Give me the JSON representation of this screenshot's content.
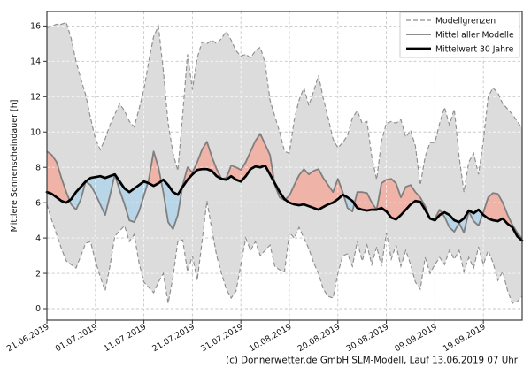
{
  "footer": {
    "text": "(c) Donnerwetter.de GmbH SLM-Modell, Lauf 13.06.2019 07 Uhr"
  },
  "colors": {
    "background": "#ffffff",
    "band_fill": "#dcdcdc",
    "band_edge": "#8f8f8f",
    "model_mean_line": "#7f7f7f",
    "climate_mean_line": "#000000",
    "above_normal_fill": "#efb3a8",
    "below_normal_fill": "#b9d6e8",
    "grid": "#c6c6c6",
    "text": "#111111"
  },
  "chart_data": {
    "type": "line",
    "title": "",
    "xlabel": "",
    "ylabel": "Mittlere Sonnenscheindauer [h]",
    "ylim": [
      -0.65,
      16.85
    ],
    "yticks": [
      0,
      2,
      4,
      6,
      8,
      10,
      12,
      14,
      16
    ],
    "grid": true,
    "legend_position": "upper right",
    "legend": [
      "Modellgrenzen",
      "Mittel aller Modelle",
      "Mittelwert 30 Jahre"
    ],
    "x_unit": "days since first date, daily values",
    "x_days_total": 98,
    "x_tick_days": [
      0,
      10,
      20,
      30,
      40,
      50,
      60,
      70,
      80,
      90
    ],
    "x_tick_labels": [
      "21.06.2019",
      "01.07.2019",
      "11.07.2019",
      "21.07.2019",
      "31.07.2019",
      "10.08.2019",
      "20.08.2019",
      "30.08.2019",
      "09.09.2019",
      "19.09.2019"
    ],
    "series": [
      {
        "name": "Modellgrenzen (oben)",
        "style": "dashed-bound",
        "values": [
          15.9,
          16.0,
          16.1,
          16.1,
          16.2,
          15.3,
          14.0,
          13.0,
          12.1,
          10.8,
          9.6,
          9.0,
          9.6,
          10.4,
          11.0,
          11.6,
          11.2,
          10.6,
          10.3,
          11.3,
          12.4,
          14.0,
          15.4,
          16.0,
          13.5,
          10.5,
          8.8,
          7.8,
          11.0,
          14.4,
          12.4,
          14.2,
          15.1,
          15.0,
          15.2,
          15.0,
          15.3,
          15.7,
          15.2,
          14.6,
          14.3,
          14.4,
          14.2,
          14.6,
          14.8,
          13.9,
          11.8,
          10.9,
          10.0,
          8.9,
          8.8,
          10.7,
          11.8,
          12.5,
          11.5,
          12.3,
          13.2,
          11.9,
          10.8,
          9.6,
          9.1,
          9.4,
          9.8,
          10.8,
          11.2,
          10.5,
          10.6,
          8.6,
          7.3,
          9.5,
          10.5,
          10.6,
          10.5,
          10.7,
          9.7,
          10.1,
          9.2,
          7.0,
          8.6,
          9.4,
          9.4,
          10.5,
          11.4,
          10.4,
          11.3,
          8.6,
          6.6,
          8.3,
          8.8,
          7.6,
          9.5,
          12.0,
          12.5,
          12.2,
          11.6,
          11.3,
          11.0,
          10.6,
          10.2
        ]
      },
      {
        "name": "Modellgrenzen (unten)",
        "style": "dashed-bound",
        "values": [
          5.9,
          5.0,
          4.2,
          3.4,
          2.7,
          2.5,
          2.3,
          3.0,
          3.7,
          3.8,
          2.7,
          1.8,
          1.0,
          2.4,
          4.1,
          4.4,
          4.7,
          3.8,
          4.2,
          2.6,
          1.5,
          1.2,
          0.9,
          1.5,
          2.0,
          0.3,
          1.8,
          3.8,
          3.9,
          2.1,
          3.0,
          1.6,
          3.8,
          6.1,
          4.5,
          3.0,
          2.0,
          1.1,
          0.6,
          1.0,
          2.5,
          4.0,
          3.3,
          3.8,
          3.0,
          3.3,
          3.6,
          2.4,
          2.2,
          2.1,
          4.3,
          4.0,
          4.6,
          4.0,
          3.4,
          2.6,
          2.0,
          1.1,
          0.7,
          0.6,
          2.0,
          3.0,
          3.1,
          2.4,
          3.8,
          2.7,
          3.6,
          2.5,
          3.5,
          2.4,
          4.3,
          2.8,
          3.6,
          2.4,
          3.3,
          2.5,
          1.5,
          1.1,
          2.9,
          2.0,
          2.5,
          2.9,
          2.5,
          3.3,
          2.8,
          3.3,
          2.1,
          2.9,
          2.3,
          3.5,
          2.5,
          3.3,
          2.6,
          1.6,
          2.1,
          1.0,
          0.3,
          0.4,
          0.7
        ]
      },
      {
        "name": "Mittel aller Modelle",
        "style": "solid-gray",
        "values": [
          8.9,
          8.7,
          8.3,
          7.4,
          6.6,
          5.9,
          5.6,
          6.2,
          7.2,
          7.0,
          6.5,
          5.9,
          5.3,
          6.4,
          7.6,
          6.7,
          5.9,
          5.0,
          4.9,
          5.5,
          6.4,
          7.3,
          8.9,
          8.0,
          6.6,
          4.9,
          4.5,
          5.3,
          7.0,
          8.0,
          7.7,
          8.3,
          9.0,
          9.45,
          8.6,
          7.9,
          7.35,
          7.4,
          8.1,
          8.0,
          7.85,
          8.3,
          8.9,
          9.5,
          9.9,
          9.3,
          8.7,
          7.0,
          6.3,
          6.15,
          6.4,
          7.0,
          7.55,
          7.9,
          7.6,
          7.8,
          7.9,
          7.4,
          7.0,
          6.6,
          7.35,
          6.6,
          5.7,
          5.5,
          6.6,
          6.6,
          6.55,
          6.0,
          5.6,
          7.1,
          7.3,
          7.35,
          7.1,
          6.3,
          6.9,
          7.0,
          6.6,
          6.3,
          5.8,
          5.1,
          5.1,
          5.6,
          5.2,
          4.6,
          4.35,
          4.85,
          4.3,
          5.5,
          4.95,
          4.7,
          5.45,
          6.3,
          6.55,
          6.5,
          6.0,
          5.3,
          4.75,
          4.3,
          3.95
        ]
      },
      {
        "name": "Mittelwert 30 Jahre",
        "style": "solid-black-bold",
        "values": [
          6.6,
          6.5,
          6.3,
          6.1,
          6.0,
          6.2,
          6.6,
          6.9,
          7.2,
          7.4,
          7.45,
          7.5,
          7.4,
          7.5,
          7.6,
          7.2,
          6.8,
          6.6,
          6.8,
          7.0,
          7.2,
          7.1,
          6.95,
          7.1,
          7.3,
          7.0,
          6.6,
          6.45,
          6.9,
          7.3,
          7.6,
          7.85,
          7.9,
          7.9,
          7.8,
          7.5,
          7.35,
          7.3,
          7.5,
          7.3,
          7.2,
          7.5,
          7.9,
          8.05,
          8.0,
          8.1,
          7.6,
          7.1,
          6.6,
          6.2,
          6.0,
          5.9,
          5.85,
          5.9,
          5.8,
          5.7,
          5.6,
          5.75,
          5.9,
          6.0,
          6.2,
          6.45,
          6.3,
          6.1,
          5.7,
          5.6,
          5.55,
          5.6,
          5.6,
          5.7,
          5.5,
          5.15,
          5.05,
          5.3,
          5.6,
          5.9,
          6.1,
          6.05,
          5.6,
          5.1,
          5.0,
          5.3,
          5.45,
          5.3,
          5.0,
          4.9,
          5.1,
          5.55,
          5.4,
          5.6,
          5.3,
          5.1,
          5.0,
          4.95,
          5.1,
          4.8,
          4.6,
          4.1,
          3.85
        ]
      }
    ],
    "fills": [
      {
        "name": "Modellspanne",
        "between": [
          "Modellgrenzen (oben)",
          "Modellgrenzen (unten)"
        ],
        "color": "#dcdcdc"
      },
      {
        "name": "Modellmittel ueber Normal",
        "between": [
          "Mittel aller Modelle",
          "Mittelwert 30 Jahre"
        ],
        "when": "above",
        "color": "#efb3a8"
      },
      {
        "name": "Modellmittel unter Normal",
        "between": [
          "Mittel aller Modelle",
          "Mittelwert 30 Jahre"
        ],
        "when": "below",
        "color": "#b9d6e8"
      }
    ]
  }
}
